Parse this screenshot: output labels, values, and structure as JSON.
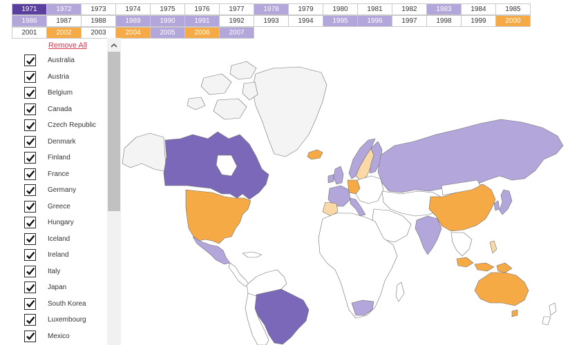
{
  "years": {
    "rows": [
      [
        {
          "label": "1971",
          "color": "purple"
        },
        {
          "label": "1972",
          "color": "lilac"
        },
        {
          "label": "1973",
          "color": "white"
        },
        {
          "label": "1974",
          "color": "white"
        },
        {
          "label": "1975",
          "color": "white"
        },
        {
          "label": "1976",
          "color": "white"
        },
        {
          "label": "1977",
          "color": "white"
        },
        {
          "label": "1978",
          "color": "lilac"
        },
        {
          "label": "1979",
          "color": "white"
        },
        {
          "label": "1980",
          "color": "white"
        },
        {
          "label": "1981",
          "color": "white"
        },
        {
          "label": "1982",
          "color": "white"
        },
        {
          "label": "1983",
          "color": "lilac"
        },
        {
          "label": "1984",
          "color": "white"
        },
        {
          "label": "1985",
          "color": "white"
        }
      ],
      [
        {
          "label": "1986",
          "color": "lilac"
        },
        {
          "label": "1987",
          "color": "white"
        },
        {
          "label": "1988",
          "color": "white"
        },
        {
          "label": "1989",
          "color": "lilac"
        },
        {
          "label": "1990",
          "color": "lilac"
        },
        {
          "label": "1991",
          "color": "lilac"
        },
        {
          "label": "1992",
          "color": "white"
        },
        {
          "label": "1993",
          "color": "white"
        },
        {
          "label": "1994",
          "color": "white"
        },
        {
          "label": "1995",
          "color": "lilac"
        },
        {
          "label": "1996",
          "color": "lilac"
        },
        {
          "label": "1997",
          "color": "white"
        },
        {
          "label": "1998",
          "color": "white"
        },
        {
          "label": "1999",
          "color": "white"
        },
        {
          "label": "2000",
          "color": "orange"
        }
      ],
      [
        {
          "label": "2001",
          "color": "white"
        },
        {
          "label": "2002",
          "color": "orange"
        },
        {
          "label": "2003",
          "color": "white"
        },
        {
          "label": "2004",
          "color": "orange"
        },
        {
          "label": "2005",
          "color": "lilac"
        },
        {
          "label": "2006",
          "color": "orange"
        },
        {
          "label": "2007",
          "color": "lilac"
        }
      ]
    ]
  },
  "panel": {
    "remove_all": "Remove All",
    "countries": [
      {
        "name": "Australia",
        "checked": true
      },
      {
        "name": "Austria",
        "checked": true
      },
      {
        "name": "Belgium",
        "checked": true
      },
      {
        "name": "Canada",
        "checked": true
      },
      {
        "name": "Czech Republic",
        "checked": true
      },
      {
        "name": "Denmark",
        "checked": true
      },
      {
        "name": "Finland",
        "checked": true
      },
      {
        "name": "France",
        "checked": true
      },
      {
        "name": "Germany",
        "checked": true
      },
      {
        "name": "Greece",
        "checked": true
      },
      {
        "name": "Hungary",
        "checked": true
      },
      {
        "name": "Iceland",
        "checked": true
      },
      {
        "name": "Ireland",
        "checked": true
      },
      {
        "name": "Italy",
        "checked": true
      },
      {
        "name": "Japan",
        "checked": true
      },
      {
        "name": "South Korea",
        "checked": true
      },
      {
        "name": "Luxembourg",
        "checked": true
      },
      {
        "name": "Mexico",
        "checked": true
      }
    ]
  },
  "icons": {
    "checkmark": "checkmark-icon",
    "scroll_up": "chevron-up-icon"
  },
  "colors": {
    "purple": "#7b68b8",
    "dark_purple": "#5a3f9e",
    "lilac": "#b3a6db",
    "orange": "#f6aa45",
    "pale_orange": "#fbd9a6",
    "land_white": "#ffffff",
    "land_light": "#f4f4f4",
    "remove_link": "#d9344d"
  }
}
